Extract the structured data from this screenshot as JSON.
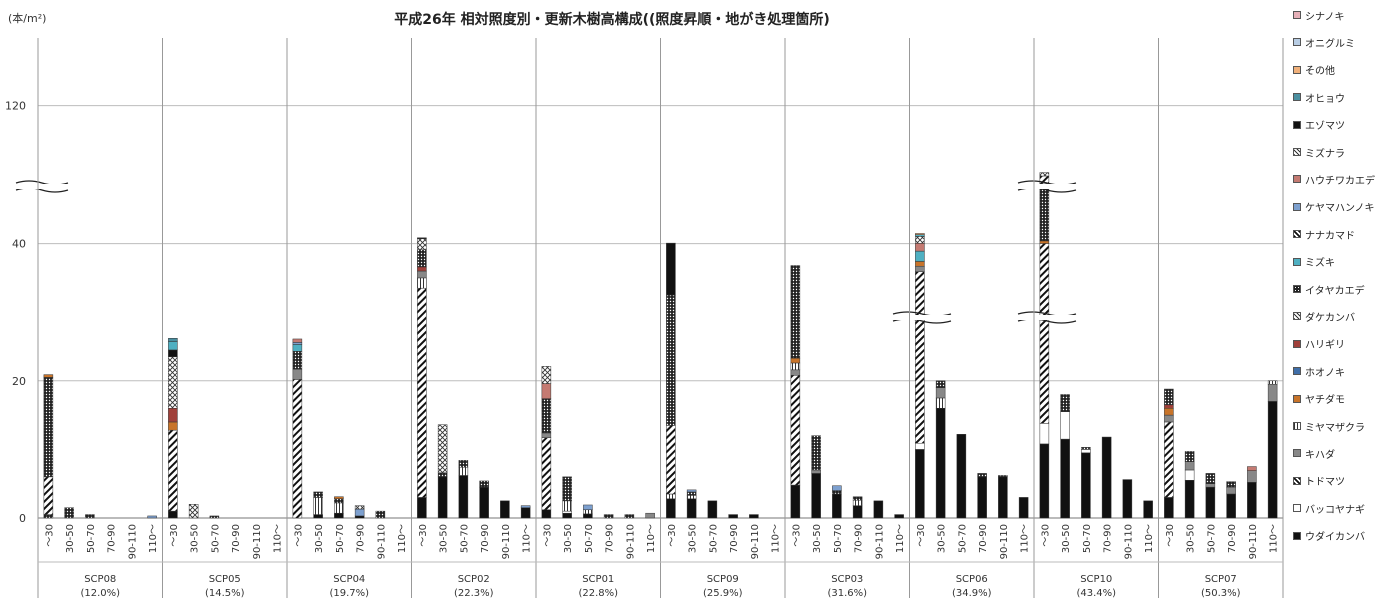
{
  "chart_data": {
    "type": "bar",
    "title": "平成26年 相対照度別・更新木樹高構成((照度昇順・地がき処理箇所)",
    "ylabel": "(本/m²)",
    "y_ticks": [
      "0",
      "20",
      "40",
      "120"
    ],
    "x_tick_labels": [
      "～30",
      "30-50",
      "50-70",
      "70-90",
      "90-110",
      "110～"
    ],
    "groups": [
      {
        "name": "SCP08",
        "sub": "(12.0%)"
      },
      {
        "name": "SCP05",
        "sub": "(14.5%)"
      },
      {
        "name": "SCP04",
        "sub": "(19.7%)"
      },
      {
        "name": "SCP02",
        "sub": "(22.3%)"
      },
      {
        "name": "SCP01",
        "sub": "(22.8%)"
      },
      {
        "name": "SCP09",
        "sub": "(25.9%)"
      },
      {
        "name": "SCP03",
        "sub": "(31.6%)"
      },
      {
        "name": "SCP06",
        "sub": "(34.9%)"
      },
      {
        "name": "SCP10",
        "sub": "(43.4%)"
      },
      {
        "name": "SCP07",
        "sub": "(50.3%)"
      }
    ],
    "legend_position": "right",
    "grid": true,
    "series": [
      {
        "name": "シナノキ",
        "color": "#e6b0b8"
      },
      {
        "name": "オニグルミ",
        "color": "#b8cde4"
      },
      {
        "name": "その他",
        "color": "#f0b07a"
      },
      {
        "name": "オヒョウ",
        "color": "#4a8fa0"
      },
      {
        "name": "エゾマツ",
        "color": "#111111"
      },
      {
        "name": "ミズナラ",
        "color": "#d8d8d8"
      },
      {
        "name": "ハウチワカエデ",
        "color": "#c47a72"
      },
      {
        "name": "ケヤマハンノキ",
        "color": "#7da0cf"
      },
      {
        "name": "ナナカマド",
        "color": "#ffffff"
      },
      {
        "name": "ミズキ",
        "color": "#4fb0c2"
      },
      {
        "name": "イタヤカエデ",
        "color": "#3a3a3a"
      },
      {
        "name": "ダケカンバ",
        "color": "#e6e6e6"
      },
      {
        "name": "ハリギリ",
        "color": "#a0403a"
      },
      {
        "name": "ホオノキ",
        "color": "#3f6ea8"
      },
      {
        "name": "ヤチダモ",
        "color": "#c8742a"
      },
      {
        "name": "ミヤマザクラ",
        "color": "#ffffff"
      },
      {
        "name": "キハダ",
        "color": "#888888"
      },
      {
        "name": "トドマツ",
        "color": "#ffffff"
      },
      {
        "name": "バッコヤナギ",
        "color": "#ffffff"
      },
      {
        "name": "ウダイカンバ",
        "color": "#111111"
      }
    ],
    "bars": [
      [
        [
          [
            10,
            0.5
          ],
          [
            17,
            5.5
          ],
          [
            10,
            14.5
          ],
          [
            14,
            0.4
          ]
        ],
        [
          [
            10,
            1.5
          ]
        ],
        [
          [
            10,
            0.5
          ]
        ],
        [],
        [],
        [
          [
            7,
            0.3
          ]
        ]
      ],
      [
        [
          [
            19,
            1.0
          ],
          [
            17,
            11.8
          ],
          [
            14,
            1.2
          ],
          [
            12,
            2.0
          ],
          [
            11,
            7.5
          ],
          [
            4,
            1.0
          ],
          [
            9,
            1.2
          ],
          [
            3,
            0.5
          ]
        ],
        [
          [
            11,
            2.0
          ]
        ],
        [
          [
            10,
            0.3
          ]
        ],
        [],
        [],
        []
      ],
      [
        [
          [
            17,
            20.2
          ],
          [
            16,
            1.5
          ],
          [
            10,
            2.6
          ],
          [
            9,
            1.0
          ],
          [
            7,
            0.3
          ],
          [
            6,
            0.5
          ]
        ],
        [
          [
            19,
            0.5
          ],
          [
            15,
            2.5
          ],
          [
            10,
            0.8
          ]
        ],
        [
          [
            19,
            0.7
          ],
          [
            15,
            1.5
          ],
          [
            10,
            0.6
          ],
          [
            14,
            0.3
          ]
        ],
        [
          [
            19,
            0.3
          ],
          [
            7,
            1.0
          ],
          [
            11,
            0.5
          ]
        ],
        [
          [
            10,
            1.0
          ]
        ],
        []
      ],
      [
        [
          [
            19,
            3.0
          ],
          [
            17,
            30.5
          ],
          [
            15,
            1.5
          ],
          [
            16,
            1.0
          ],
          [
            12,
            0.6
          ],
          [
            10,
            2.5
          ],
          [
            11,
            4.0
          ],
          [
            4,
            0.5
          ]
        ],
        [
          [
            19,
            6.0
          ],
          [
            10,
            0.6
          ],
          [
            11,
            7.0
          ]
        ],
        [
          [
            19,
            6.2
          ],
          [
            15,
            1.2
          ],
          [
            10,
            1.0
          ]
        ],
        [
          [
            19,
            4.5
          ],
          [
            10,
            0.9
          ]
        ],
        [
          [
            19,
            2.5
          ]
        ],
        [
          [
            19,
            1.5
          ],
          [
            7,
            0.3
          ]
        ]
      ],
      [
        [
          [
            19,
            1.2
          ],
          [
            17,
            10.5
          ],
          [
            16,
            0.7
          ],
          [
            10,
            5.0
          ],
          [
            6,
            2.2
          ],
          [
            5,
            2.5
          ]
        ],
        [
          [
            19,
            0.7
          ],
          [
            18,
            0.3
          ],
          [
            15,
            1.5
          ],
          [
            10,
            3.5
          ]
        ],
        [
          [
            19,
            0.6
          ],
          [
            15,
            0.6
          ],
          [
            7,
            0.7
          ]
        ],
        [
          [
            10,
            0.5
          ]
        ],
        [
          [
            10,
            0.5
          ]
        ],
        [
          [
            16,
            0.7
          ]
        ]
      ],
      [
        [
          [
            19,
            2.8
          ],
          [
            15,
            0.7
          ],
          [
            17,
            10.0
          ],
          [
            10,
            19.0
          ],
          [
            4,
            8.0
          ]
        ],
        [
          [
            19,
            2.8
          ],
          [
            15,
            0.5
          ],
          [
            10,
            0.5
          ],
          [
            7,
            0.3
          ]
        ],
        [
          [
            19,
            2.5
          ]
        ],
        [
          [
            19,
            0.5
          ]
        ],
        [
          [
            19,
            0.5
          ]
        ],
        []
      ],
      [
        [
          [
            19,
            4.8
          ],
          [
            17,
            16.0
          ],
          [
            16,
            0.8
          ],
          [
            15,
            1.0
          ],
          [
            14,
            0.7
          ],
          [
            10,
            13.5
          ]
        ],
        [
          [
            19,
            6.5
          ],
          [
            16,
            0.5
          ],
          [
            10,
            5.0
          ]
        ],
        [
          [
            19,
            3.5
          ],
          [
            10,
            0.5
          ],
          [
            7,
            0.7
          ]
        ],
        [
          [
            19,
            1.8
          ],
          [
            15,
            0.8
          ],
          [
            10,
            0.5
          ]
        ],
        [
          [
            19,
            2.5
          ]
        ],
        [
          [
            19,
            0.5
          ]
        ]
      ],
      [
        [
          [
            19,
            10.0
          ],
          [
            18,
            0.9
          ],
          [
            17,
            25.0
          ],
          [
            16,
            0.8
          ],
          [
            14,
            0.7
          ],
          [
            9,
            1.5
          ],
          [
            6,
            1.5
          ],
          [
            11,
            4.0
          ],
          [
            9,
            1.0
          ],
          [
            2,
            0.7
          ]
        ],
        [
          [
            19,
            16.0
          ],
          [
            15,
            1.5
          ],
          [
            16,
            1.5
          ],
          [
            10,
            1.0
          ]
        ],
        [
          [
            19,
            12.2
          ]
        ],
        [
          [
            19,
            6.0
          ],
          [
            10,
            0.5
          ]
        ],
        [
          [
            19,
            6.0
          ],
          [
            10,
            0.2
          ]
        ],
        [
          [
            19,
            3.0
          ]
        ]
      ],
      [
        [
          [
            19,
            10.8
          ],
          [
            18,
            3.0
          ],
          [
            17,
            26.5
          ],
          [
            14,
            1.5
          ],
          [
            10,
            33.0
          ],
          [
            17,
            4.5
          ],
          [
            5,
            2.0
          ]
        ],
        [
          [
            19,
            11.5
          ],
          [
            18,
            4.0
          ],
          [
            10,
            2.5
          ]
        ],
        [
          [
            19,
            9.5
          ],
          [
            18,
            0.5
          ],
          [
            10,
            0.3
          ]
        ],
        [
          [
            19,
            11.8
          ]
        ],
        [
          [
            19,
            5.6
          ]
        ],
        [
          [
            19,
            2.5
          ]
        ]
      ],
      [
        [
          [
            19,
            3.0
          ],
          [
            17,
            11.0
          ],
          [
            16,
            1.0
          ],
          [
            14,
            1.0
          ],
          [
            12,
            0.5
          ],
          [
            10,
            2.3
          ]
        ],
        [
          [
            19,
            5.5
          ],
          [
            18,
            1.5
          ],
          [
            16,
            1.2
          ],
          [
            10,
            1.5
          ]
        ],
        [
          [
            19,
            4.5
          ],
          [
            16,
            0.5
          ],
          [
            10,
            1.5
          ]
        ],
        [
          [
            19,
            3.5
          ],
          [
            16,
            1.0
          ],
          [
            10,
            0.8
          ]
        ],
        [
          [
            19,
            5.2
          ],
          [
            16,
            1.7
          ],
          [
            6,
            0.6
          ]
        ],
        [
          [
            19,
            17.0
          ],
          [
            16,
            2.5
          ],
          [
            15,
            0.5
          ]
        ]
      ]
    ]
  }
}
